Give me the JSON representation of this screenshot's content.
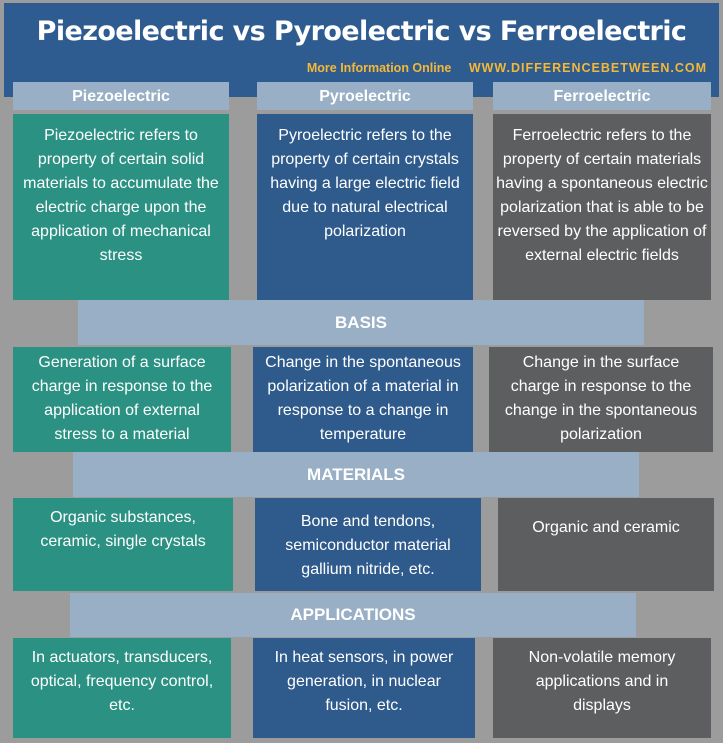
{
  "header": {
    "title": "Piezoelectric vs Pyroelectric vs Ferroelectric",
    "more_info": "More Information Online",
    "site": "WWW.DIFFERENCEBETWEEN.COM"
  },
  "columns": [
    "Piezoelectric",
    "Pyroelectric",
    "Ferroelectric"
  ],
  "definitions": [
    "Piezoelectric refers to property of certain solid materials to accumulate the electric charge upon the application of mechanical stress",
    "Pyroelectric refers to the property of certain crystals having a large electric field due to natural electrical polarization",
    "Ferroelectric refers to the property of certain materials having a spontaneous electric polarization that is able to be reversed by the application of external electric fields"
  ],
  "sections": {
    "basis": {
      "title": "BASIS",
      "cells": [
        "Generation of a surface charge in response to the application of external stress to a material",
        "Change in the spontaneous polarization of a material in response to a change in temperature",
        "Change in the surface charge in response to the change in the spontaneous polarization"
      ]
    },
    "materials": {
      "title": "MATERIALS",
      "cells": [
        "Organic substances, ceramic, single crystals",
        "Bone and tendons, semiconductor material gallium nitride, etc.",
        "Organic and ceramic"
      ]
    },
    "applications": {
      "title": "APPLICATIONS",
      "cells": [
        "In actuators, transducers, optical, frequency control, etc.",
        "In heat sensors, in power generation, in nuclear fusion, etc.",
        "Non-volatile memory applications and in displays"
      ]
    }
  },
  "colors": {
    "piezo": "#2b9183",
    "pyro": "#2e5a8c",
    "ferro": "#5d5e60",
    "band": "#98afc6",
    "header": "#2e5c91",
    "accent": "#f5b836"
  }
}
